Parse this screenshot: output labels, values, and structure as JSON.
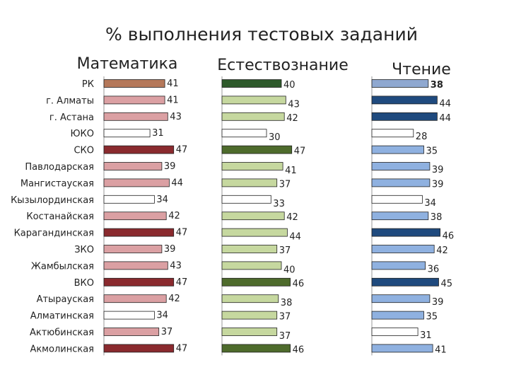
{
  "title": "% выполнения тестовых заданий",
  "chart_data": {
    "type": "bar",
    "orientation": "horizontal",
    "categories": [
      "РК",
      "г. Алматы",
      "г. Астана",
      "ЮКО",
      "СКО",
      "Павлодарская",
      "Мангистауская",
      "Кызылординская",
      "Костанайская",
      "Карагандинская",
      "ЗКО",
      "Жамбылская",
      "ВКО",
      "Атырауская",
      "Алматинская",
      "Актюбинская",
      "Акмолинская"
    ],
    "series": [
      {
        "name": "Математика",
        "values": [
          41,
          41,
          43,
          31,
          47,
          39,
          44,
          34,
          42,
          47,
          39,
          43,
          47,
          42,
          34,
          37,
          47
        ],
        "colors": [
          "#b5785a",
          "#dba0a3",
          "#dba0a3",
          "#ffffff",
          "#8a2a2e",
          "#dba0a3",
          "#dba0a3",
          "#ffffff",
          "#dba0a3",
          "#8a2a2e",
          "#dba0a3",
          "#dba0a3",
          "#8a2a2e",
          "#dba0a3",
          "#ffffff",
          "#dba0a3",
          "#8a2a2e"
        ]
      },
      {
        "name": "Естествознание",
        "values": [
          40,
          43,
          42,
          30,
          47,
          41,
          37,
          33,
          42,
          44,
          37,
          40,
          46,
          38,
          37,
          37,
          46
        ],
        "colors": [
          "#2e5a2b",
          "#c6d89f",
          "#c6d89f",
          "#ffffff",
          "#4e6b2c",
          "#c6d89f",
          "#c6d89f",
          "#ffffff",
          "#c6d89f",
          "#c6d89f",
          "#c6d89f",
          "#c6d89f",
          "#4e6b2c",
          "#c6d89f",
          "#c6d89f",
          "#c6d89f",
          "#4e6b2c"
        ]
      },
      {
        "name": "Чтение",
        "values": [
          38,
          44,
          44,
          28,
          35,
          39,
          39,
          34,
          38,
          46,
          42,
          36,
          45,
          39,
          35,
          31,
          41
        ],
        "colors": [
          "#8fa8d0",
          "#1f4a7e",
          "#1f4a7e",
          "#ffffff",
          "#8fb1e0",
          "#8fb1e0",
          "#8fb1e0",
          "#ffffff",
          "#8fb1e0",
          "#1f4a7e",
          "#8fb1e0",
          "#8fb1e0",
          "#1f4a7e",
          "#8fb1e0",
          "#8fb1e0",
          "#ffffff",
          "#8fb1e0"
        ],
        "highlight": {
          "index": 0,
          "label_color": "#d0322a"
        }
      }
    ],
    "label_color": "#222222",
    "bar_stroke": "#222222"
  }
}
